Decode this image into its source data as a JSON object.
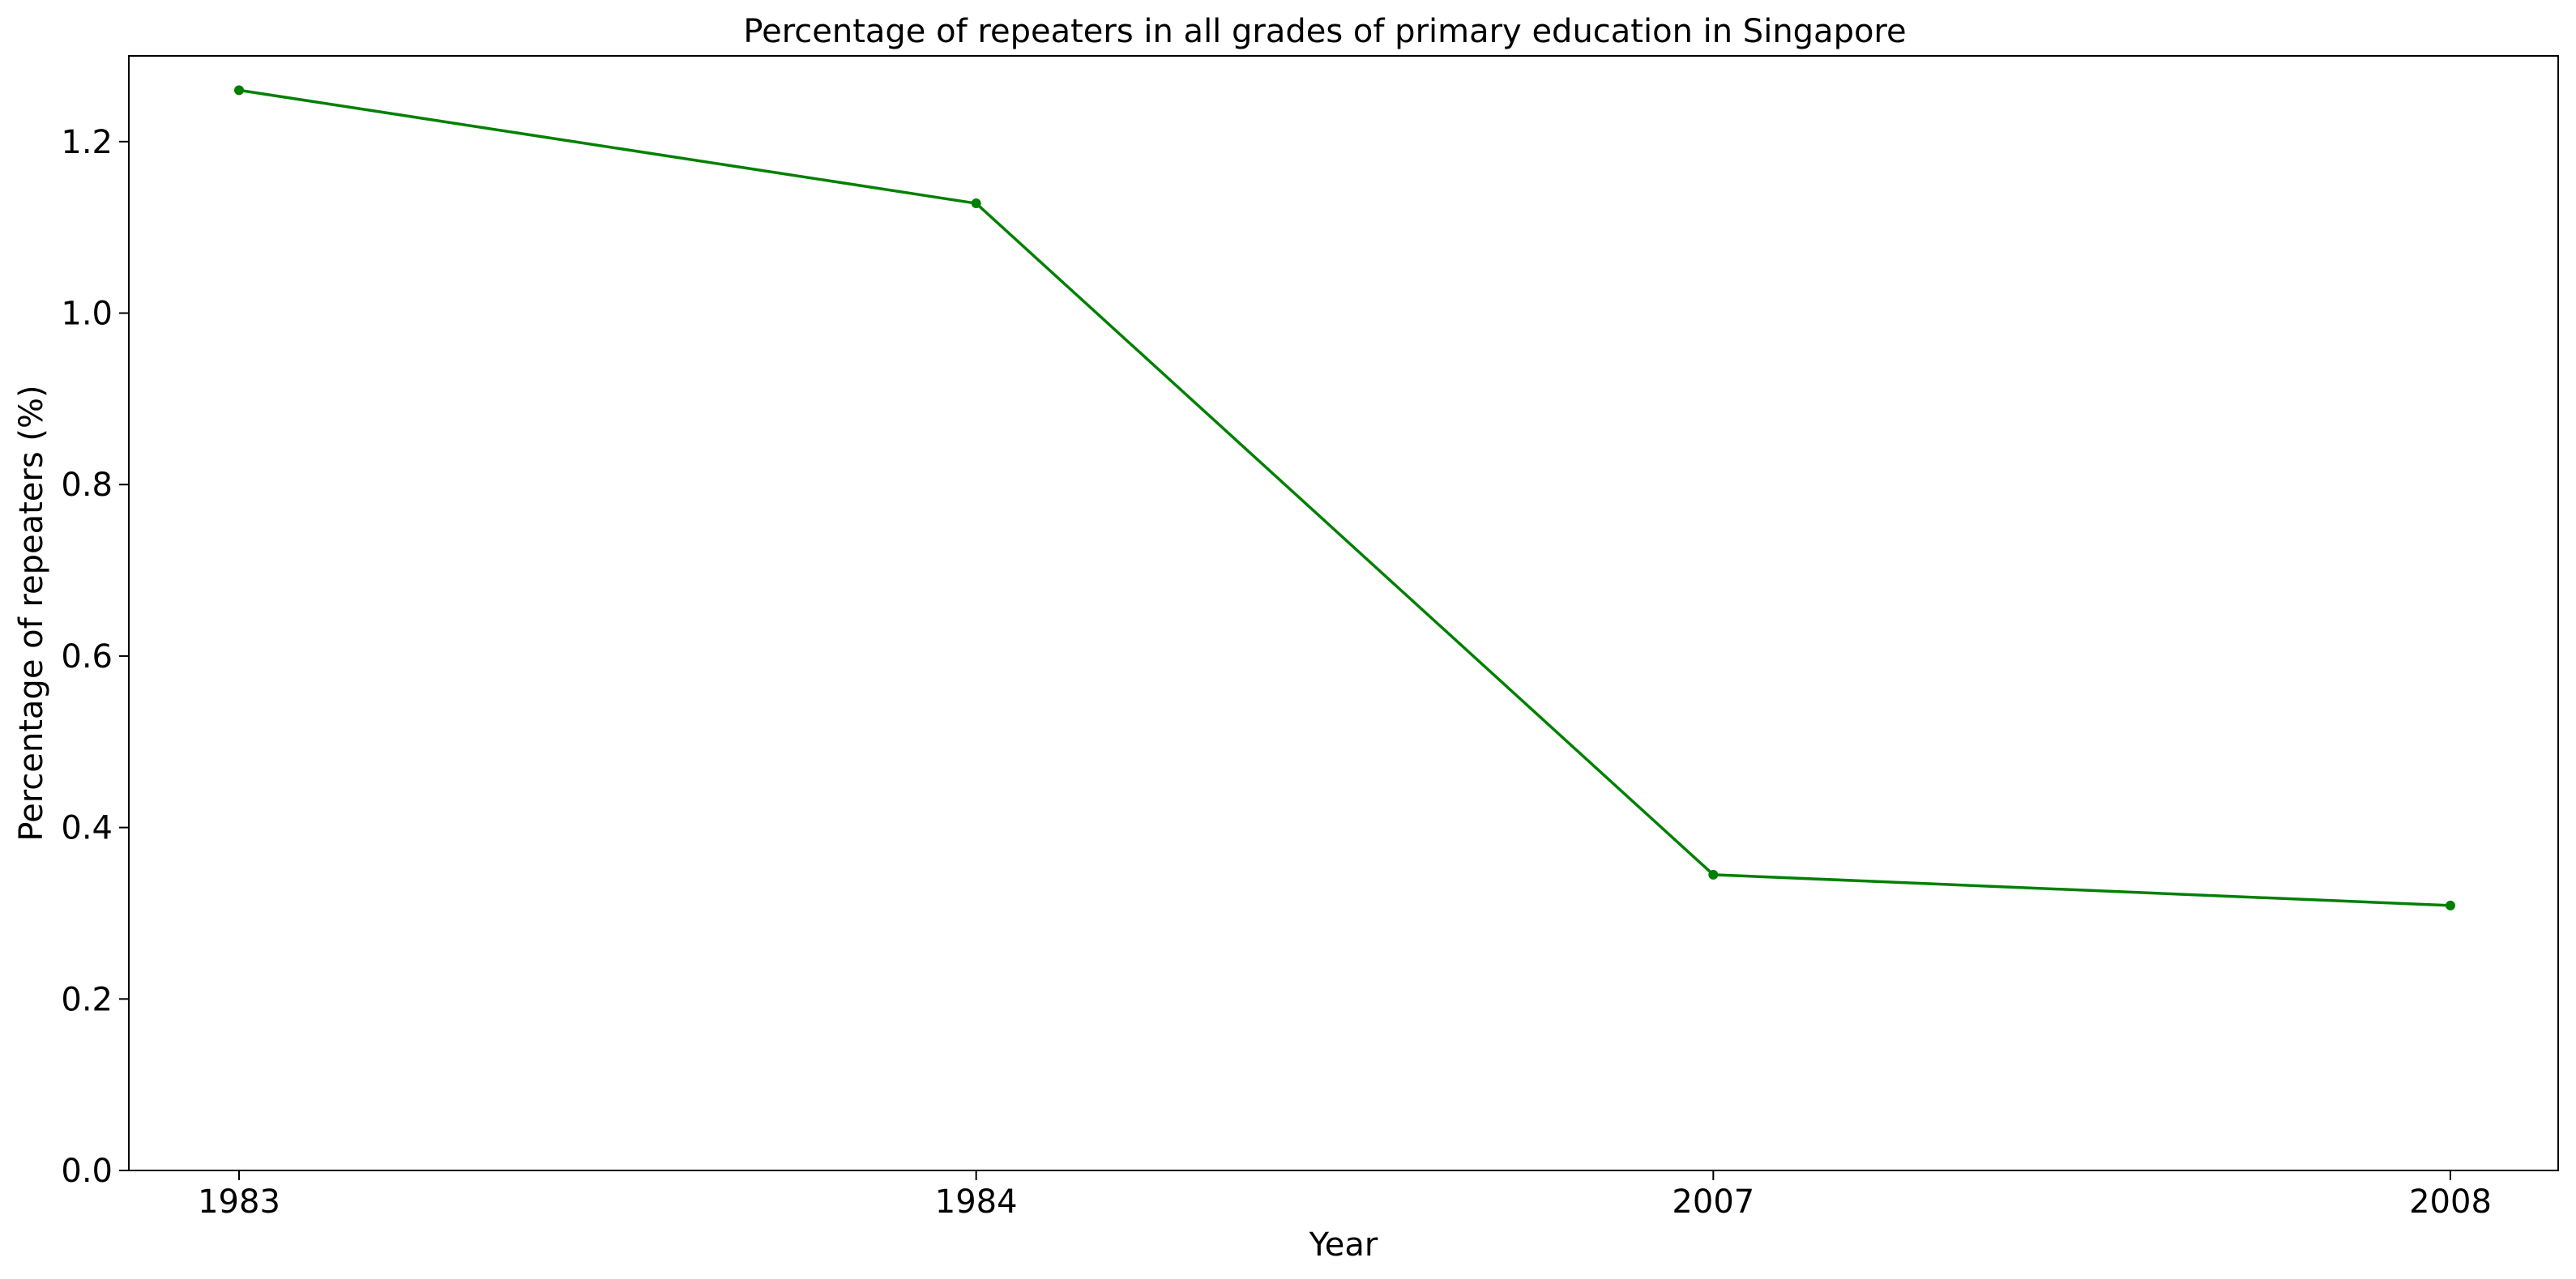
{
  "chart_data": {
    "type": "line",
    "title": "Percentage of repeaters in all grades of primary education in Singapore",
    "xlabel": "Year",
    "ylabel": "Percentage of repeaters (%)",
    "categories": [
      "1983",
      "1984",
      "2007",
      "2008"
    ],
    "series": [
      {
        "values": [
          1.26,
          1.128,
          0.345,
          0.309
        ],
        "color": "#008000",
        "marker": "circle"
      }
    ],
    "ylim": [
      0,
      1.3
    ],
    "yticks": [
      "0.0",
      "0.2",
      "0.4",
      "0.6",
      "0.8",
      "1.0",
      "1.2"
    ],
    "grid": false,
    "legend": "none"
  }
}
